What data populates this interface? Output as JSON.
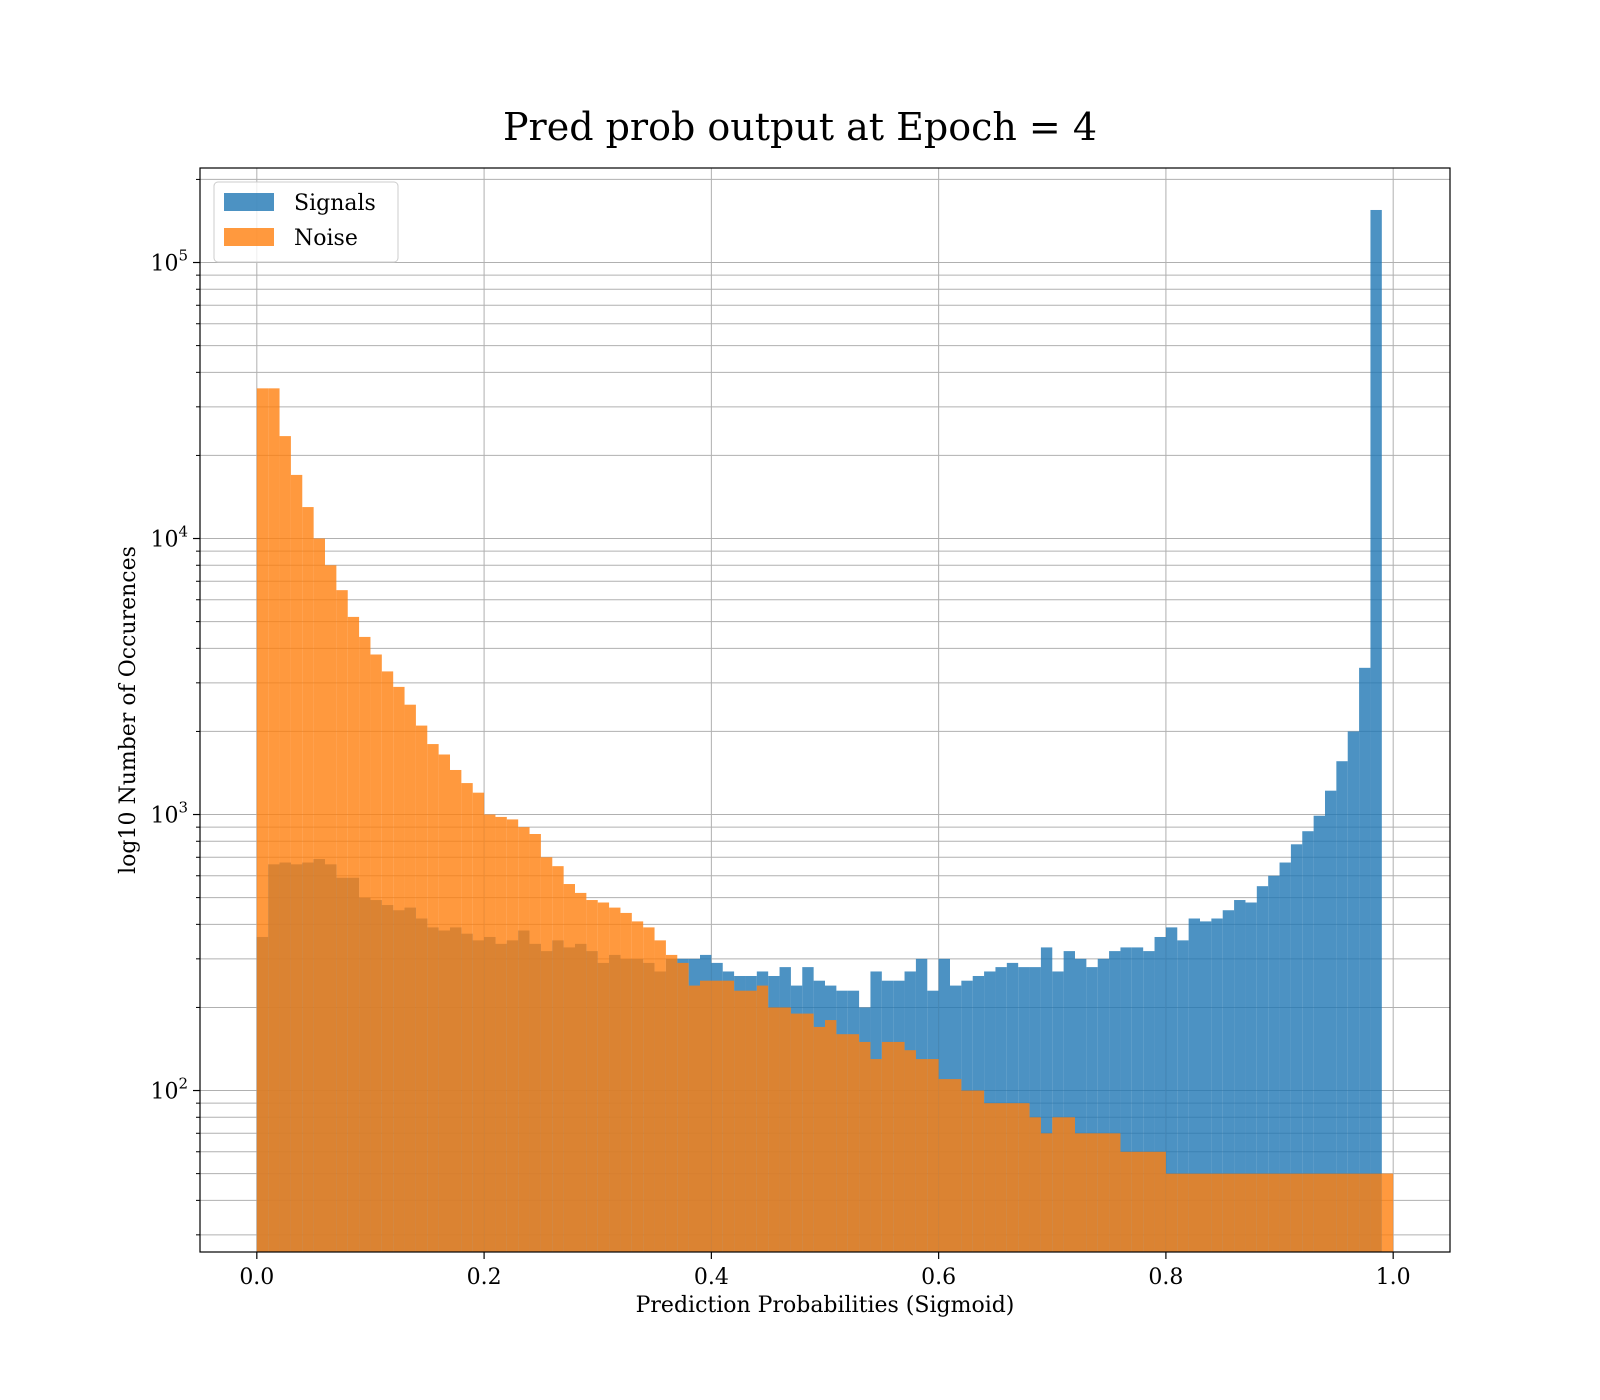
{
  "chart_data": {
    "type": "bar",
    "title": "Pred prob output at Epoch = 4",
    "xlabel": "Prediction Probabilities (Sigmoid)",
    "ylabel": "log10 Number of Occurences",
    "xlim": [
      -0.05,
      1.05
    ],
    "ylim": [
      26,
      220000
    ],
    "yscale": "log",
    "grid": "both major and minor",
    "legend_position": "top-left",
    "bin_width": 0.01,
    "bin_start": 0.0,
    "x_ticks": [
      {
        "value": 0.0,
        "label": "0.0"
      },
      {
        "value": 0.2,
        "label": "0.2"
      },
      {
        "value": 0.4,
        "label": "0.4"
      },
      {
        "value": 0.6,
        "label": "0.6"
      },
      {
        "value": 0.8,
        "label": "0.8"
      },
      {
        "value": 1.0,
        "label": "1.0"
      }
    ],
    "y_ticks": [
      {
        "value": 100,
        "base": "10",
        "exp": "2"
      },
      {
        "value": 1000,
        "base": "10",
        "exp": "3"
      },
      {
        "value": 10000,
        "base": "10",
        "exp": "4"
      },
      {
        "value": 100000,
        "base": "10",
        "exp": "5"
      }
    ],
    "series": [
      {
        "name": "Signals",
        "color": "#1f77b4",
        "values": [
          360,
          660,
          670,
          660,
          670,
          690,
          660,
          590,
          590,
          500,
          490,
          470,
          450,
          460,
          420,
          390,
          380,
          390,
          370,
          350,
          360,
          340,
          350,
          380,
          340,
          320,
          350,
          330,
          340,
          320,
          290,
          310,
          300,
          300,
          290,
          270,
          300,
          300,
          300,
          310,
          290,
          270,
          260,
          260,
          270,
          260,
          280,
          240,
          280,
          250,
          240,
          230,
          230,
          200,
          270,
          250,
          250,
          270,
          300,
          230,
          300,
          240,
          250,
          260,
          270,
          280,
          290,
          280,
          280,
          330,
          270,
          320,
          300,
          280,
          300,
          320,
          330,
          330,
          320,
          360,
          390,
          350,
          420,
          410,
          420,
          450,
          490,
          480,
          550,
          600,
          670,
          780,
          870,
          990,
          1220,
          1560,
          2000,
          3400,
          155000,
          null
        ]
      },
      {
        "name": "Noise",
        "color": "#ff7f0e",
        "values": [
          35000,
          35000,
          23500,
          17000,
          13000,
          10000,
          8000,
          6500,
          5200,
          4400,
          3800,
          3300,
          2900,
          2500,
          2100,
          1800,
          1650,
          1450,
          1300,
          1200,
          1000,
          980,
          960,
          900,
          850,
          700,
          650,
          560,
          520,
          490,
          480,
          460,
          440,
          410,
          390,
          350,
          310,
          290,
          240,
          250,
          250,
          250,
          230,
          230,
          240,
          200,
          200,
          190,
          190,
          170,
          180,
          160,
          160,
          150,
          130,
          150,
          150,
          140,
          130,
          130,
          110,
          110,
          100,
          100,
          90,
          90,
          90,
          90,
          80,
          70,
          80,
          80,
          70,
          70,
          70,
          70,
          60,
          60,
          60,
          60,
          50,
          50,
          50,
          50,
          50,
          50,
          50,
          50,
          50,
          50,
          50,
          50,
          50,
          50,
          50,
          50,
          50,
          50,
          50,
          50
        ]
      }
    ]
  }
}
